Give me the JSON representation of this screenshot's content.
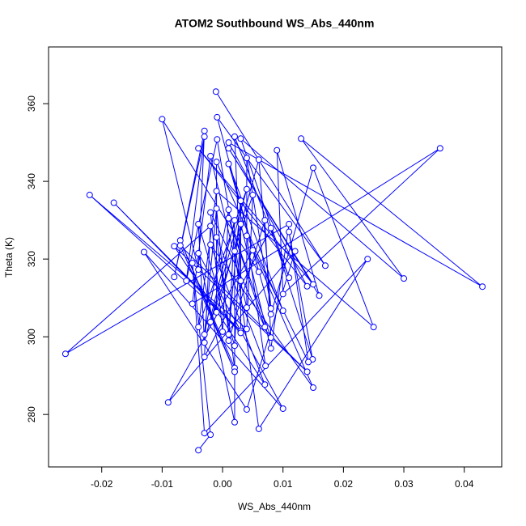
{
  "chart_data": {
    "type": "line",
    "markers": "circle",
    "color": "#0000ff",
    "title": "ATOM2 Southbound WS_Abs_440nm",
    "x_label": "WS_Abs_440nm",
    "y_label": "Theta (K)",
    "x": [
      -0.0011,
      0.017,
      -0.0009,
      0.006,
      -0.01,
      -0.004,
      -0.003,
      -0.008,
      -0.003,
      -0.006,
      -0.0009,
      0.003,
      0.002,
      0.011,
      0.003,
      0.03,
      0.013,
      0.043,
      0.001,
      0.014,
      -0.004,
      0.015,
      0.001,
      0.016,
      0.009,
      0.01,
      0.036,
      -0.005,
      -0.002,
      0.004,
      0.004,
      0.008,
      0.006,
      -0.001,
      -0.001,
      0.01,
      0.001,
      0.008,
      0.015,
      0.025,
      -0.001,
      -0.004,
      0.004,
      -0.002,
      0.005,
      0.004,
      -0.022,
      0.003,
      -0.018,
      0.003,
      0.003,
      0.001,
      -0.001,
      -0.003,
      0.001,
      0,
      -0.002,
      0.007,
      0.001,
      0.008,
      0.007,
      0.001,
      0.002,
      -0.003,
      -0.004,
      0.002,
      0.003,
      0.008,
      0.011,
      -0.026,
      -0.002,
      -0.003,
      0.008,
      0.0149,
      0.011,
      0.0142,
      0.004,
      0.0071,
      -0.001,
      0.002,
      -0.007,
      0.002,
      -0.007,
      0.014,
      -0.008,
      0.007,
      -0.002,
      0.015,
      0.005,
      -0.009,
      0.012,
      0.004,
      -0.013,
      0.01,
      -0.004,
      0.002,
      0.002,
      0.006,
      0.024,
      -0.003,
      -0.005,
      -0.002,
      -0.004
    ],
    "values": [
      363.1,
      318.3,
      356.5,
      316.7,
      356,
      317.3,
      353,
      315.4,
      351.5,
      314.4,
      350.8,
      314.4,
      351.5,
      315.2,
      351,
      315,
      351,
      312.9,
      350,
      313,
      348.5,
      313.5,
      348.5,
      310.6,
      348,
      311,
      348.5,
      308.5,
      346.5,
      307.5,
      346,
      307.3,
      345.6,
      306.3,
      345,
      306.7,
      344.5,
      305.8,
      343.5,
      302.5,
      337.5,
      302.5,
      338,
      303.8,
      336.5,
      302,
      336.5,
      301.5,
      334.5,
      301,
      335,
      300.6,
      333,
      300.6,
      332.7,
      301.3,
      332,
      302.5,
      330.5,
      299.8,
      330,
      299,
      330,
      298.5,
      329,
      297.7,
      329,
      297,
      329,
      295.6,
      328.5,
      294.8,
      328,
      294.2,
      327,
      293.5,
      326,
      292.5,
      325.6,
      292,
      324.8,
      291,
      323.5,
      291,
      323.3,
      287.7,
      323.7,
      286.9,
      322.3,
      283.1,
      322,
      281.3,
      321.8,
      281.5,
      321.5,
      278,
      322,
      276.3,
      320,
      275.2,
      319,
      274.8,
      270.8
    ],
    "xlim": [
      -0.0288,
      0.0462
    ],
    "ylim": [
      266.5,
      374.6
    ],
    "xticks": [
      -0.02,
      -0.01,
      {
        "value": 0,
        "label": "0.00"
      },
      0.01,
      0.02,
      0.03,
      0.04
    ],
    "yticks": [
      280,
      300,
      320,
      340,
      360
    ]
  }
}
